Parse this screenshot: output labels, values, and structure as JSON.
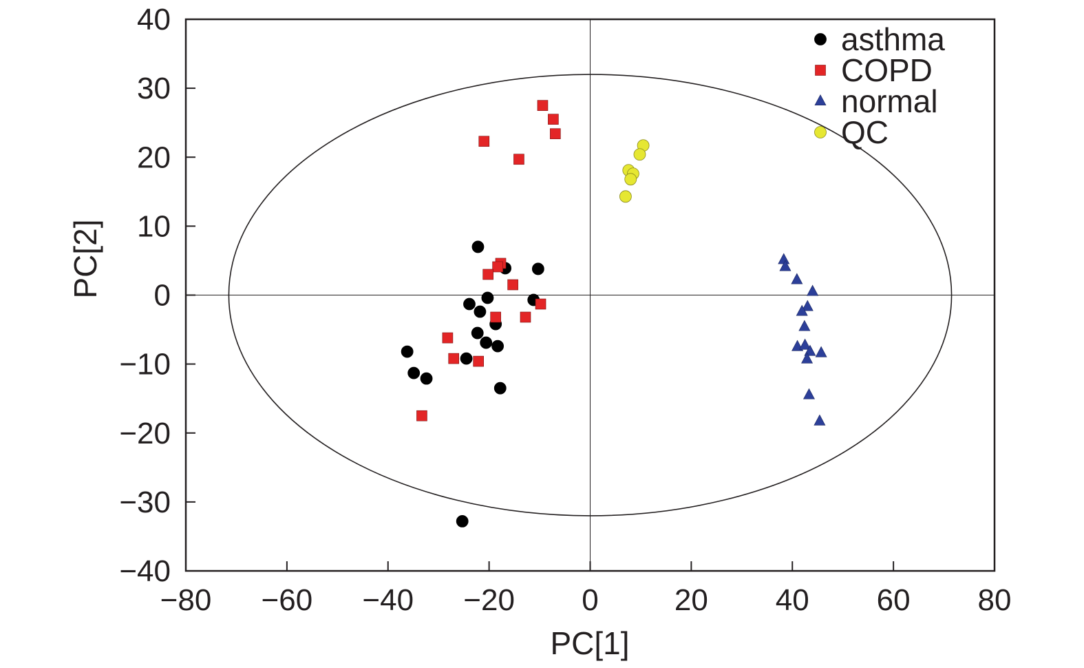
{
  "chart_data": {
    "type": "scatter",
    "xlabel": "PC[1]",
    "ylabel": "PC[2]",
    "xlim": [
      -80,
      80
    ],
    "ylim": [
      -40,
      40
    ],
    "xticks": [
      -80,
      -60,
      -40,
      -20,
      0,
      20,
      40,
      60,
      80
    ],
    "yticks": [
      -40,
      -30,
      -20,
      -10,
      0,
      10,
      20,
      30,
      40
    ],
    "xtick_labels": [
      "−80",
      "−60",
      "−40",
      "−20",
      "0",
      "20",
      "40",
      "60",
      "80"
    ],
    "ytick_labels": [
      "−40",
      "−30",
      "−20",
      "−10",
      "0",
      "10",
      "20",
      "30",
      "40"
    ],
    "grid": false,
    "reference_lines": {
      "x": 0,
      "y": 0
    },
    "confidence_ellipse": {
      "rx": 71.5,
      "ry": 32
    },
    "legend_position": "top-right",
    "series": [
      {
        "name": "asthma",
        "marker": "circle",
        "color": "#000000",
        "points": [
          [
            -22.2,
            7.0
          ],
          [
            -16.8,
            3.9
          ],
          [
            -10.3,
            3.8
          ],
          [
            -20.3,
            -0.4
          ],
          [
            -23.9,
            -1.3
          ],
          [
            -21.8,
            -2.4
          ],
          [
            -11.2,
            -0.7
          ],
          [
            -18.7,
            -4.2
          ],
          [
            -22.3,
            -5.5
          ],
          [
            -20.6,
            -6.9
          ],
          [
            -18.3,
            -7.4
          ],
          [
            -36.2,
            -8.2
          ],
          [
            -24.5,
            -9.2
          ],
          [
            -34.9,
            -11.3
          ],
          [
            -32.4,
            -12.1
          ],
          [
            -17.8,
            -13.5
          ],
          [
            -25.3,
            -32.8
          ]
        ]
      },
      {
        "name": "COPD",
        "marker": "square",
        "color": "#e32526",
        "points": [
          [
            -9.4,
            27.5
          ],
          [
            -7.3,
            25.5
          ],
          [
            -6.9,
            23.4
          ],
          [
            -21.0,
            22.3
          ],
          [
            -14.1,
            19.7
          ],
          [
            -17.7,
            4.6
          ],
          [
            -18.3,
            4.1
          ],
          [
            -20.2,
            3.0
          ],
          [
            -15.3,
            1.5
          ],
          [
            -9.8,
            -1.3
          ],
          [
            -18.7,
            -3.2
          ],
          [
            -12.8,
            -3.2
          ],
          [
            -28.2,
            -6.2
          ],
          [
            -27.0,
            -9.2
          ],
          [
            -22.1,
            -9.6
          ],
          [
            -33.3,
            -17.5
          ]
        ]
      },
      {
        "name": "normal",
        "marker": "triangle",
        "color": "#2c3f99",
        "points": [
          [
            38.3,
            5.1
          ],
          [
            38.6,
            4.1
          ],
          [
            40.9,
            2.2
          ],
          [
            44.0,
            0.5
          ],
          [
            43.0,
            -1.7
          ],
          [
            41.9,
            -2.4
          ],
          [
            42.4,
            -4.6
          ],
          [
            41.0,
            -7.5
          ],
          [
            42.5,
            -7.3
          ],
          [
            43.5,
            -8.2
          ],
          [
            45.7,
            -8.4
          ],
          [
            42.9,
            -9.3
          ],
          [
            43.3,
            -14.5
          ],
          [
            45.4,
            -18.3
          ]
        ]
      },
      {
        "name": "QC",
        "marker": "circle",
        "color": "#e6e732",
        "points": [
          [
            10.5,
            21.7
          ],
          [
            9.8,
            20.4
          ],
          [
            7.6,
            18.1
          ],
          [
            8.5,
            17.6
          ],
          [
            8.0,
            16.8
          ],
          [
            7.0,
            14.3
          ]
        ]
      }
    ]
  }
}
